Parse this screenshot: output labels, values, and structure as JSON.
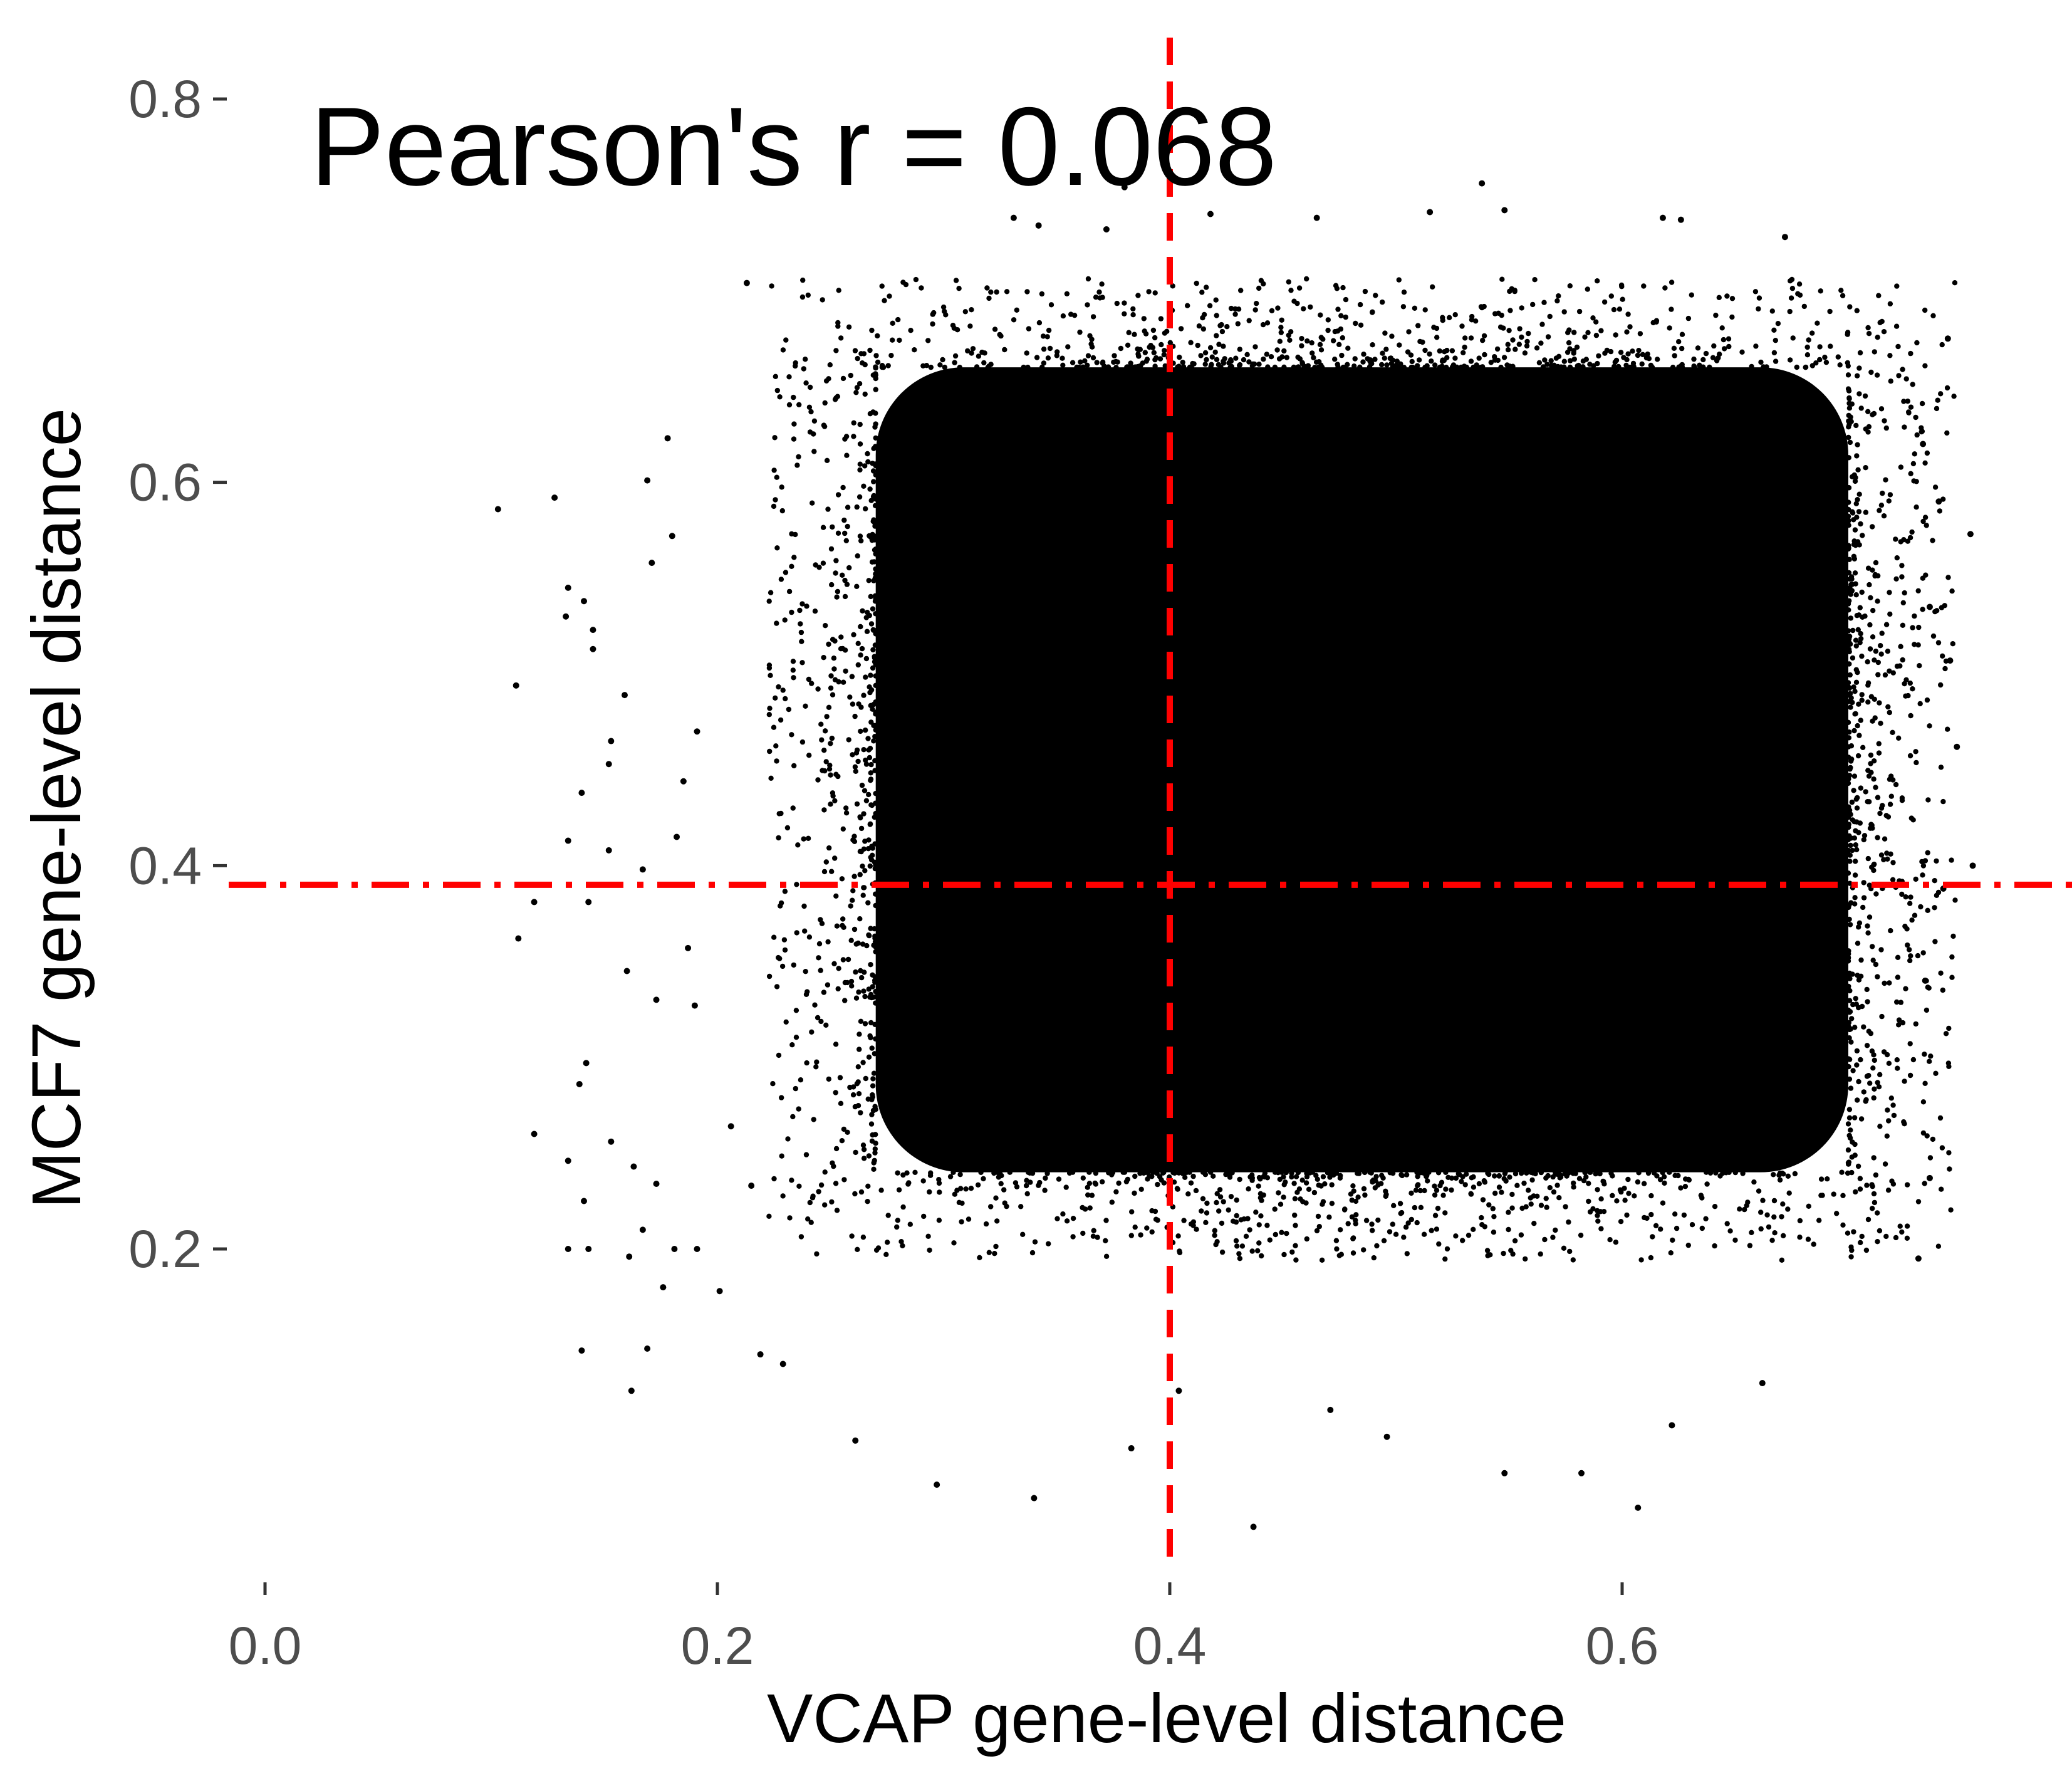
{
  "chart_data": {
    "type": "scatter",
    "title": "",
    "annotation": "Pearson's r = 0.068",
    "xlabel": "VCAP gene-level distance",
    "ylabel": "MCF7 gene-level distance",
    "xlim": [
      0.0,
      0.79
    ],
    "ylim": [
      0.05,
      0.82
    ],
    "x_ticks": [
      0.0,
      0.2,
      0.4,
      0.6
    ],
    "x_tick_labels": [
      "0.0",
      "0.2",
      "0.4",
      "0.6"
    ],
    "y_ticks": [
      0.2,
      0.4,
      0.6,
      0.8
    ],
    "y_tick_labels": [
      "0.2",
      "0.4",
      "0.6",
      "0.8"
    ],
    "grid": false,
    "legend": "none",
    "reference_lines": [
      {
        "orientation": "vertical",
        "value": 0.4,
        "color": "#ff0000",
        "style": "dashed"
      },
      {
        "orientation": "horizontal",
        "value": 0.39,
        "color": "#ff0000",
        "style": "dotdash"
      }
    ],
    "point_color": "#000000",
    "dense_region": {
      "x_range": [
        0.27,
        0.7
      ],
      "y_range": [
        0.24,
        0.66
      ],
      "point_count": "very many (overplotted)"
    },
    "outlier_points": [
      {
        "x": 0.103,
        "y": 0.586
      },
      {
        "x": 0.128,
        "y": 0.592
      },
      {
        "x": 0.111,
        "y": 0.494
      },
      {
        "x": 0.133,
        "y": 0.53
      },
      {
        "x": 0.134,
        "y": 0.545
      },
      {
        "x": 0.141,
        "y": 0.538
      },
      {
        "x": 0.145,
        "y": 0.513
      },
      {
        "x": 0.145,
        "y": 0.523
      },
      {
        "x": 0.159,
        "y": 0.489
      },
      {
        "x": 0.153,
        "y": 0.465
      },
      {
        "x": 0.152,
        "y": 0.453
      },
      {
        "x": 0.14,
        "y": 0.438
      },
      {
        "x": 0.134,
        "y": 0.413
      },
      {
        "x": 0.152,
        "y": 0.408
      },
      {
        "x": 0.119,
        "y": 0.381
      },
      {
        "x": 0.143,
        "y": 0.381
      },
      {
        "x": 0.167,
        "y": 0.398
      },
      {
        "x": 0.112,
        "y": 0.362
      },
      {
        "x": 0.16,
        "y": 0.345
      },
      {
        "x": 0.173,
        "y": 0.33
      },
      {
        "x": 0.142,
        "y": 0.297
      },
      {
        "x": 0.139,
        "y": 0.286
      },
      {
        "x": 0.119,
        "y": 0.26
      },
      {
        "x": 0.153,
        "y": 0.256
      },
      {
        "x": 0.134,
        "y": 0.246
      },
      {
        "x": 0.163,
        "y": 0.243
      },
      {
        "x": 0.173,
        "y": 0.234
      },
      {
        "x": 0.141,
        "y": 0.225
      },
      {
        "x": 0.167,
        "y": 0.21
      },
      {
        "x": 0.143,
        "y": 0.2
      },
      {
        "x": 0.134,
        "y": 0.2
      },
      {
        "x": 0.161,
        "y": 0.196
      },
      {
        "x": 0.181,
        "y": 0.2
      },
      {
        "x": 0.191,
        "y": 0.2
      },
      {
        "x": 0.176,
        "y": 0.18
      },
      {
        "x": 0.14,
        "y": 0.147
      },
      {
        "x": 0.169,
        "y": 0.148
      },
      {
        "x": 0.162,
        "y": 0.126
      },
      {
        "x": 0.178,
        "y": 0.623
      },
      {
        "x": 0.169,
        "y": 0.601
      },
      {
        "x": 0.18,
        "y": 0.572
      },
      {
        "x": 0.171,
        "y": 0.558
      },
      {
        "x": 0.213,
        "y": 0.704
      },
      {
        "x": 0.191,
        "y": 0.47
      },
      {
        "x": 0.185,
        "y": 0.444
      },
      {
        "x": 0.182,
        "y": 0.415
      },
      {
        "x": 0.187,
        "y": 0.357
      },
      {
        "x": 0.19,
        "y": 0.327
      },
      {
        "x": 0.206,
        "y": 0.264
      },
      {
        "x": 0.215,
        "y": 0.233
      },
      {
        "x": 0.201,
        "y": 0.178
      },
      {
        "x": 0.219,
        "y": 0.145
      },
      {
        "x": 0.229,
        "y": 0.14
      },
      {
        "x": 0.261,
        "y": 0.1
      },
      {
        "x": 0.297,
        "y": 0.077
      },
      {
        "x": 0.34,
        "y": 0.07
      },
      {
        "x": 0.383,
        "y": 0.096
      },
      {
        "x": 0.437,
        "y": 0.055
      },
      {
        "x": 0.38,
        "y": 0.754
      },
      {
        "x": 0.331,
        "y": 0.738
      },
      {
        "x": 0.342,
        "y": 0.734
      },
      {
        "x": 0.372,
        "y": 0.732
      },
      {
        "x": 0.418,
        "y": 0.74
      },
      {
        "x": 0.465,
        "y": 0.738
      },
      {
        "x": 0.515,
        "y": 0.741
      },
      {
        "x": 0.538,
        "y": 0.756
      },
      {
        "x": 0.548,
        "y": 0.742
      },
      {
        "x": 0.618,
        "y": 0.738
      },
      {
        "x": 0.626,
        "y": 0.737
      },
      {
        "x": 0.672,
        "y": 0.728
      },
      {
        "x": 0.744,
        "y": 0.675
      },
      {
        "x": 0.733,
        "y": 0.62
      },
      {
        "x": 0.754,
        "y": 0.573
      },
      {
        "x": 0.74,
        "y": 0.59
      },
      {
        "x": 0.736,
        "y": 0.535
      },
      {
        "x": 0.745,
        "y": 0.507
      },
      {
        "x": 0.748,
        "y": 0.462
      },
      {
        "x": 0.755,
        "y": 0.4
      },
      {
        "x": 0.742,
        "y": 0.388
      },
      {
        "x": 0.734,
        "y": 0.34
      },
      {
        "x": 0.736,
        "y": 0.237
      },
      {
        "x": 0.731,
        "y": 0.195
      },
      {
        "x": 0.662,
        "y": 0.13
      },
      {
        "x": 0.622,
        "y": 0.108
      },
      {
        "x": 0.607,
        "y": 0.065
      },
      {
        "x": 0.582,
        "y": 0.083
      },
      {
        "x": 0.548,
        "y": 0.083
      },
      {
        "x": 0.496,
        "y": 0.102
      },
      {
        "x": 0.471,
        "y": 0.116
      },
      {
        "x": 0.404,
        "y": 0.126
      }
    ]
  }
}
